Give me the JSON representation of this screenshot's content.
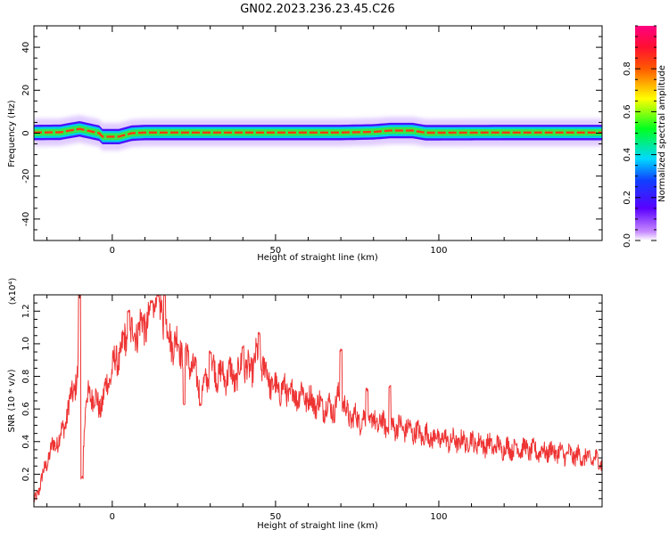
{
  "title": "GN02.2023.236.23.45.C26",
  "colors": {
    "background": "#ffffff",
    "snr_line": "#ee3333",
    "axes": "#000000"
  },
  "chart_data": [
    {
      "type": "heatmap",
      "name": "spectrogram",
      "xlabel": "Height of straight line (km)",
      "ylabel": "Frequency (Hz)",
      "xlim": [
        -24,
        150
      ],
      "ylim": [
        -50,
        50
      ],
      "xticks": [
        0,
        50,
        100
      ],
      "yticks": [
        -40,
        -20,
        0,
        20,
        40
      ],
      "colormap": "rainbow (purple-blue-cyan-green-yellow-red-pink)",
      "colorbar": {
        "label": "Normalized spectral amplitude",
        "range": [
          0,
          1
        ],
        "ticks": [
          0.0,
          0.2,
          0.4,
          0.6,
          0.8
        ]
      },
      "ridge_center_hz": [
        [
          -24,
          0.3
        ],
        [
          -16,
          0.4
        ],
        [
          -12,
          1.5
        ],
        [
          -10,
          2.0
        ],
        [
          -7,
          1.0
        ],
        [
          -4,
          0
        ],
        [
          -3,
          -1.6
        ],
        [
          2,
          -1.6
        ],
        [
          6,
          0
        ],
        [
          10,
          0.3
        ],
        [
          40,
          0.3
        ],
        [
          70,
          0.3
        ],
        [
          80,
          0.6
        ],
        [
          85,
          1.2
        ],
        [
          92,
          1.2
        ],
        [
          96,
          0.2
        ],
        [
          120,
          0.3
        ],
        [
          150,
          0.3
        ]
      ],
      "ridge_halfwidth_hz": 2.0,
      "grid": false
    },
    {
      "type": "line",
      "name": "snr",
      "xlabel": "Height of straight line (km)",
      "ylabel": "SNR (10 * v/v)",
      "multiplier_label": "(x10⁴)",
      "xlim": [
        -24,
        150
      ],
      "ylim": [
        0,
        1.3
      ],
      "xticks": [
        0,
        50,
        100
      ],
      "yticks": [
        0.2,
        0.4,
        0.6,
        0.8,
        1.0,
        1.2
      ],
      "grid": false,
      "series": [
        {
          "points": [
            [
              -24,
              0.02
            ],
            [
              -22,
              0.14
            ],
            [
              -20,
              0.28
            ],
            [
              -18,
              0.38
            ],
            [
              -16,
              0.42
            ],
            [
              -14,
              0.55
            ],
            [
              -12,
              0.72
            ],
            [
              -10.5,
              0.8
            ],
            [
              -10,
              1.3
            ],
            [
              -9.3,
              0.25
            ],
            [
              -8,
              0.65
            ],
            [
              -6,
              0.7
            ],
            [
              -4,
              0.6
            ],
            [
              -2,
              0.72
            ],
            [
              0,
              0.85
            ],
            [
              2,
              0.92
            ],
            [
              4,
              1.02
            ],
            [
              6,
              1.05
            ],
            [
              8,
              1.1
            ],
            [
              10,
              1.12
            ],
            [
              12,
              1.15
            ],
            [
              14,
              1.25
            ],
            [
              16,
              1.12
            ],
            [
              18,
              1.02
            ],
            [
              20,
              1.0
            ],
            [
              22,
              0.95
            ],
            [
              24,
              0.88
            ],
            [
              26,
              0.78
            ],
            [
              28,
              0.72
            ],
            [
              30,
              0.88
            ],
            [
              32,
              0.82
            ],
            [
              34,
              0.8
            ],
            [
              36,
              0.82
            ],
            [
              38,
              0.78
            ],
            [
              40,
              0.88
            ],
            [
              42,
              0.82
            ],
            [
              44,
              0.92
            ],
            [
              46,
              0.88
            ],
            [
              48,
              0.78
            ],
            [
              50,
              0.72
            ],
            [
              52,
              0.72
            ],
            [
              54,
              0.7
            ],
            [
              56,
              0.68
            ],
            [
              58,
              0.7
            ],
            [
              60,
              0.66
            ],
            [
              62,
              0.64
            ],
            [
              64,
              0.62
            ],
            [
              66,
              0.62
            ],
            [
              68,
              0.6
            ],
            [
              70,
              0.7
            ],
            [
              72,
              0.56
            ],
            [
              75,
              0.54
            ],
            [
              80,
              0.52
            ],
            [
              85,
              0.5
            ],
            [
              90,
              0.48
            ],
            [
              95,
              0.44
            ],
            [
              100,
              0.42
            ],
            [
              105,
              0.4
            ],
            [
              110,
              0.4
            ],
            [
              115,
              0.38
            ],
            [
              120,
              0.36
            ],
            [
              125,
              0.36
            ],
            [
              130,
              0.34
            ],
            [
              135,
              0.34
            ],
            [
              140,
              0.32
            ],
            [
              145,
              0.3
            ],
            [
              150,
              0.28
            ]
          ],
          "spikes": [
            [
              -10,
              1.3
            ],
            [
              -9.3,
              0.18
            ],
            [
              5,
              1.2
            ],
            [
              12,
              1.26
            ],
            [
              14,
              1.3
            ],
            [
              16,
              1.3
            ],
            [
              22,
              0.63
            ],
            [
              27,
              0.63
            ],
            [
              30,
              0.95
            ],
            [
              40,
              0.98
            ],
            [
              45,
              1.06
            ],
            [
              70,
              0.96
            ],
            [
              78,
              0.72
            ],
            [
              85,
              0.74
            ]
          ]
        }
      ]
    }
  ]
}
